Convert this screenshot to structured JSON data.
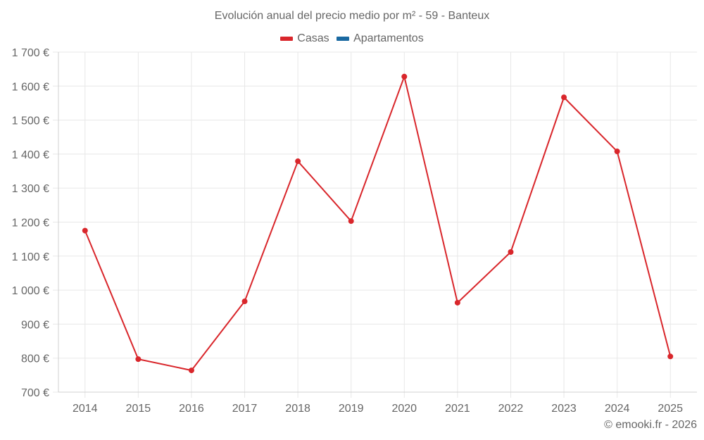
{
  "title": "Evolución anual del precio medio por m² - 59 - Banteux",
  "legend": [
    {
      "label": "Casas",
      "color": "#d9262b"
    },
    {
      "label": "Apartamentos",
      "color": "#1a69a1"
    }
  ],
  "credit": "© emooki.fr - 2026",
  "colors": {
    "line": "#d9262b",
    "grid": "#e8e8e8",
    "axis": "#d0d0d0",
    "text": "#666666"
  },
  "chart_data": {
    "type": "line",
    "title": "Evolución anual del precio medio por m² - 59 - Banteux",
    "xlabel": "",
    "ylabel": "",
    "categories": [
      "2014",
      "2015",
      "2016",
      "2017",
      "2018",
      "2019",
      "2020",
      "2021",
      "2022",
      "2023",
      "2024",
      "2025"
    ],
    "series": [
      {
        "name": "Casas",
        "color": "#d9262b",
        "values": [
          1175,
          797,
          764,
          967,
          1379,
          1203,
          1628,
          963,
          1112,
          1567,
          1408,
          805
        ]
      },
      {
        "name": "Apartamentos",
        "color": "#1a69a1",
        "values": []
      }
    ],
    "ylim": [
      700,
      1700
    ],
    "yticks": [
      700,
      800,
      900,
      1000,
      1100,
      1200,
      1300,
      1400,
      1500,
      1600,
      1700
    ],
    "ytick_labels": [
      "700 €",
      "800 €",
      "900 €",
      "1 000 €",
      "1 100 €",
      "1 200 €",
      "1 300 €",
      "1 400 €",
      "1 500 €",
      "1 600 €",
      "1 700 €"
    ],
    "grid": true,
    "legend_position": "top"
  }
}
